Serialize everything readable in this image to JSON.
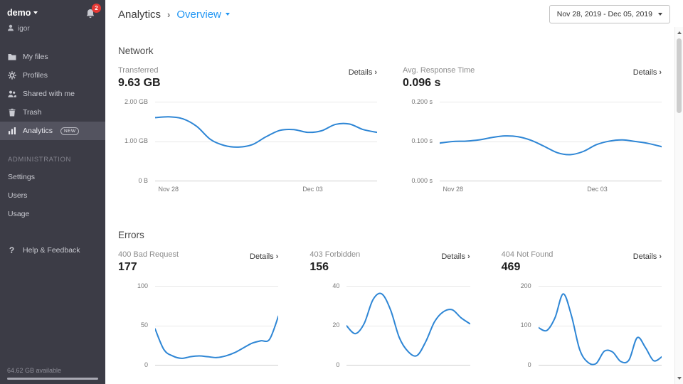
{
  "colors": {
    "accent": "#2196f3",
    "line": "#2e86d5",
    "badge": "#e53935"
  },
  "sidebar": {
    "account": {
      "name": "demo",
      "user": "igor",
      "notifications": "2"
    },
    "items": [
      {
        "label": "My files",
        "icon": "folder-icon"
      },
      {
        "label": "Profiles",
        "icon": "gear-icon"
      },
      {
        "label": "Shared with me",
        "icon": "people-icon"
      },
      {
        "label": "Trash",
        "icon": "trash-icon"
      },
      {
        "label": "Analytics",
        "icon": "bar-chart-icon",
        "badge": "NEW",
        "selected": true
      }
    ],
    "admin": {
      "title": "ADMINISTRATION",
      "items": [
        {
          "label": "Settings"
        },
        {
          "label": "Users"
        },
        {
          "label": "Usage"
        }
      ]
    },
    "help": {
      "label": "Help & Feedback",
      "icon_text": "?"
    },
    "storage": {
      "text": "64.62 GB available"
    }
  },
  "header": {
    "title": "Analytics",
    "breadcrumb_chevron": "›",
    "view": "Overview",
    "date_range": "Nov 28, 2019 - Dec 05, 2019"
  },
  "sections": {
    "network": "Network",
    "errors": "Errors"
  },
  "labels": {
    "details": "Details",
    "details_chevron": "›"
  },
  "chart_data": [
    {
      "id": "transferred",
      "type": "line",
      "section": "Network",
      "title": "Transferred",
      "value": "9.63 GB",
      "ylim": [
        0,
        2
      ],
      "ymax": 2,
      "yticks": [
        "2.00 GB",
        "1.00 GB",
        "0 B"
      ],
      "xticks": [
        {
          "label": "Nov 28",
          "pos": 0.06
        },
        {
          "label": "Dec 03",
          "pos": 0.71
        }
      ],
      "values": [
        1.6,
        1.62,
        1.57,
        1.38,
        1.05,
        0.9,
        0.86,
        0.92,
        1.12,
        1.28,
        1.3,
        1.23,
        1.27,
        1.43,
        1.44,
        1.3,
        1.23
      ]
    },
    {
      "id": "avg-response-time",
      "type": "line",
      "section": "Network",
      "title": "Avg. Response Time",
      "value": "0.096 s",
      "ylim": [
        0,
        0.2
      ],
      "ymax": 0.2,
      "yticks": [
        "0.200 s",
        "0.100 s",
        "0.000 s"
      ],
      "xticks": [
        {
          "label": "Nov 28",
          "pos": 0.06
        },
        {
          "label": "Dec 03",
          "pos": 0.71
        }
      ],
      "values": [
        0.096,
        0.1,
        0.101,
        0.104,
        0.11,
        0.114,
        0.112,
        0.103,
        0.088,
        0.072,
        0.067,
        0.075,
        0.092,
        0.101,
        0.104,
        0.1,
        0.095,
        0.087
      ]
    },
    {
      "id": "error-400",
      "type": "line",
      "section": "Errors",
      "title": "400 Bad Request",
      "value": "177",
      "ylim": [
        0,
        100
      ],
      "ymax": 100,
      "yticks": [
        "100",
        "50",
        "0"
      ],
      "values": [
        46,
        20,
        12,
        9,
        11,
        12,
        11,
        10,
        12,
        16,
        22,
        28,
        31,
        33,
        62
      ]
    },
    {
      "id": "error-403",
      "type": "line",
      "section": "Errors",
      "title": "403 Forbidden",
      "value": "156",
      "ylim": [
        0,
        40
      ],
      "ymax": 40,
      "yticks": [
        "40",
        "20",
        "0"
      ],
      "values": [
        20,
        16,
        21,
        33,
        36,
        28,
        14,
        7,
        5,
        12,
        22,
        27,
        28,
        24,
        21
      ]
    },
    {
      "id": "error-404",
      "type": "line",
      "section": "Errors",
      "title": "404 Not Found",
      "value": "469",
      "ylim": [
        0,
        200
      ],
      "ymax": 200,
      "yticks": [
        "200",
        "100",
        "0"
      ],
      "values": [
        95,
        88,
        120,
        180,
        125,
        40,
        8,
        5,
        36,
        34,
        10,
        14,
        70,
        45,
        12,
        22
      ]
    }
  ]
}
